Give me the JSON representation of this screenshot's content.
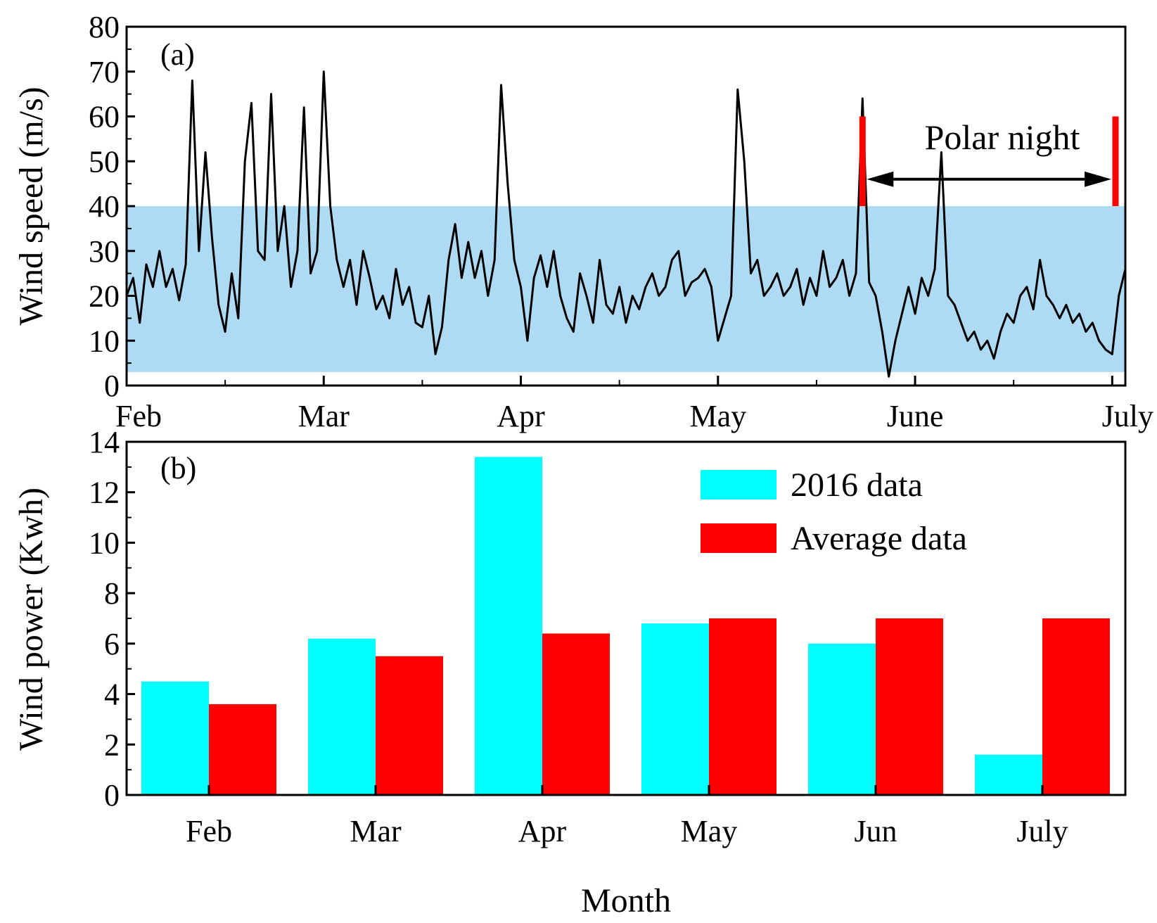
{
  "colors": {
    "band": "#aedaf3",
    "speed_line": "#000000",
    "bar_2016": "#00ffff",
    "bar_average": "#ff0000",
    "marker": "#ff0000"
  },
  "chart_data": [
    {
      "type": "line",
      "panel_label": "(a)",
      "ylabel": "Wind speed (m/s)",
      "ylim": [
        0,
        80
      ],
      "yticks": [
        0,
        10,
        20,
        30,
        40,
        50,
        60,
        70,
        80
      ],
      "xlim": [
        0,
        152
      ],
      "x_unit": "days since Feb 1",
      "xticks": [
        {
          "label": "Feb",
          "day": 0
        },
        {
          "label": "Mar",
          "day": 30
        },
        {
          "label": "Apr",
          "day": 60
        },
        {
          "label": "May",
          "day": 90
        },
        {
          "label": "June",
          "day": 120
        },
        {
          "label": "July",
          "day": 150
        }
      ],
      "band": {
        "from": 3,
        "to": 40
      },
      "annotation": {
        "text": "Polar night",
        "start_day": 112,
        "end_day": 150.5,
        "arrow_y": 46,
        "marker_from": 40,
        "marker_to": 60
      },
      "series": {
        "name": "Wind speed",
        "points": [
          [
            0,
            20
          ],
          [
            1,
            24
          ],
          [
            2,
            14
          ],
          [
            3,
            27
          ],
          [
            4,
            22
          ],
          [
            5,
            30
          ],
          [
            6,
            22
          ],
          [
            7,
            26
          ],
          [
            8,
            19
          ],
          [
            9,
            27
          ],
          [
            10,
            68
          ],
          [
            11,
            30
          ],
          [
            12,
            52
          ],
          [
            13,
            33
          ],
          [
            14,
            18
          ],
          [
            15,
            12
          ],
          [
            16,
            25
          ],
          [
            17,
            15
          ],
          [
            18,
            50
          ],
          [
            19,
            63
          ],
          [
            20,
            30
          ],
          [
            21,
            28
          ],
          [
            22,
            65
          ],
          [
            23,
            30
          ],
          [
            24,
            40
          ],
          [
            25,
            22
          ],
          [
            26,
            30
          ],
          [
            27,
            62
          ],
          [
            28,
            25
          ],
          [
            29,
            30
          ],
          [
            30,
            70
          ],
          [
            31,
            40
          ],
          [
            32,
            28
          ],
          [
            33,
            22
          ],
          [
            34,
            28
          ],
          [
            35,
            18
          ],
          [
            36,
            30
          ],
          [
            37,
            24
          ],
          [
            38,
            17
          ],
          [
            39,
            20
          ],
          [
            40,
            15
          ],
          [
            41,
            26
          ],
          [
            42,
            18
          ],
          [
            43,
            22
          ],
          [
            44,
            14
          ],
          [
            45,
            13
          ],
          [
            46,
            20
          ],
          [
            47,
            7
          ],
          [
            48,
            13
          ],
          [
            49,
            28
          ],
          [
            50,
            36
          ],
          [
            51,
            24
          ],
          [
            52,
            32
          ],
          [
            53,
            24
          ],
          [
            54,
            30
          ],
          [
            55,
            20
          ],
          [
            56,
            28
          ],
          [
            57,
            67
          ],
          [
            58,
            45
          ],
          [
            59,
            28
          ],
          [
            60,
            22
          ],
          [
            61,
            10
          ],
          [
            62,
            24
          ],
          [
            63,
            29
          ],
          [
            64,
            22
          ],
          [
            65,
            30
          ],
          [
            66,
            20
          ],
          [
            67,
            15
          ],
          [
            68,
            12
          ],
          [
            69,
            25
          ],
          [
            70,
            20
          ],
          [
            71,
            14
          ],
          [
            72,
            28
          ],
          [
            73,
            18
          ],
          [
            74,
            16
          ],
          [
            75,
            22
          ],
          [
            76,
            14
          ],
          [
            77,
            20
          ],
          [
            78,
            17
          ],
          [
            79,
            22
          ],
          [
            80,
            25
          ],
          [
            81,
            20
          ],
          [
            82,
            22
          ],
          [
            83,
            28
          ],
          [
            84,
            30
          ],
          [
            85,
            20
          ],
          [
            86,
            23
          ],
          [
            87,
            24
          ],
          [
            88,
            26
          ],
          [
            89,
            22
          ],
          [
            90,
            10
          ],
          [
            91,
            15
          ],
          [
            92,
            20
          ],
          [
            93,
            66
          ],
          [
            94,
            50
          ],
          [
            95,
            25
          ],
          [
            96,
            28
          ],
          [
            97,
            20
          ],
          [
            98,
            22
          ],
          [
            99,
            25
          ],
          [
            100,
            20
          ],
          [
            101,
            22
          ],
          [
            102,
            26
          ],
          [
            103,
            18
          ],
          [
            104,
            24
          ],
          [
            105,
            20
          ],
          [
            106,
            30
          ],
          [
            107,
            22
          ],
          [
            108,
            24
          ],
          [
            109,
            28
          ],
          [
            110,
            20
          ],
          [
            111,
            25
          ],
          [
            112,
            64
          ],
          [
            113,
            23
          ],
          [
            114,
            20
          ],
          [
            115,
            12
          ],
          [
            116,
            2
          ],
          [
            117,
            10
          ],
          [
            118,
            16
          ],
          [
            119,
            22
          ],
          [
            120,
            16
          ],
          [
            121,
            24
          ],
          [
            122,
            20
          ],
          [
            123,
            26
          ],
          [
            124,
            52
          ],
          [
            125,
            20
          ],
          [
            126,
            18
          ],
          [
            127,
            14
          ],
          [
            128,
            10
          ],
          [
            129,
            12
          ],
          [
            130,
            8
          ],
          [
            131,
            10
          ],
          [
            132,
            6
          ],
          [
            133,
            12
          ],
          [
            134,
            16
          ],
          [
            135,
            14
          ],
          [
            136,
            20
          ],
          [
            137,
            22
          ],
          [
            138,
            17
          ],
          [
            139,
            28
          ],
          [
            140,
            20
          ],
          [
            141,
            18
          ],
          [
            142,
            15
          ],
          [
            143,
            18
          ],
          [
            144,
            14
          ],
          [
            145,
            16
          ],
          [
            146,
            12
          ],
          [
            147,
            14
          ],
          [
            148,
            10
          ],
          [
            149,
            8
          ],
          [
            150,
            7
          ],
          [
            151,
            20
          ],
          [
            152,
            26
          ]
        ]
      }
    },
    {
      "type": "bar",
      "panel_label": "(b)",
      "xlabel": "Month",
      "ylabel": "Wind power (Kwh)",
      "ylim": [
        0,
        14
      ],
      "yticks": [
        0,
        2,
        4,
        6,
        8,
        10,
        12,
        14
      ],
      "categories": [
        "Feb",
        "Mar",
        "Apr",
        "May",
        "Jun",
        "July"
      ],
      "series": [
        {
          "name": "2016 data",
          "values": [
            4.5,
            6.2,
            13.4,
            6.8,
            6.0,
            1.6
          ]
        },
        {
          "name": "Average data",
          "values": [
            3.6,
            5.5,
            6.4,
            7.0,
            7.0,
            7.0
          ]
        }
      ],
      "legend_position": "top-right"
    }
  ]
}
